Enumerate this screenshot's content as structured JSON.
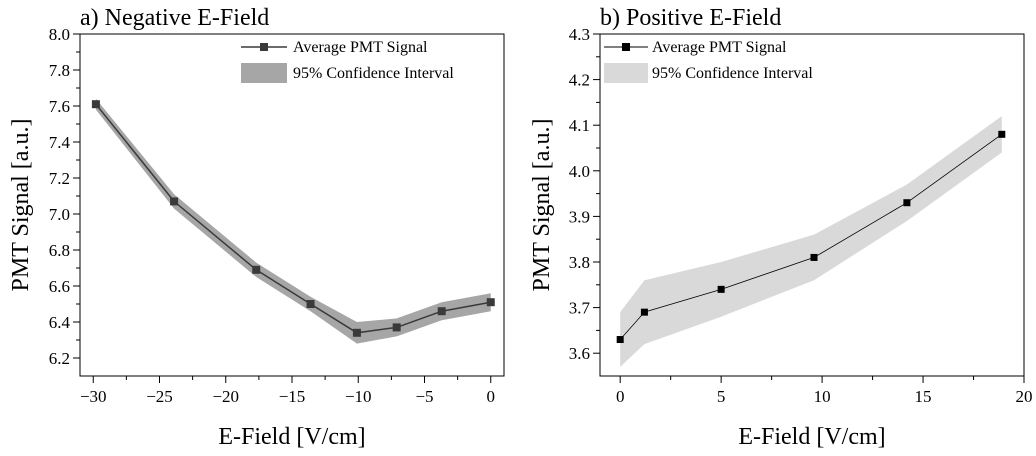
{
  "colors": {
    "left_line": "#3a3a3a",
    "left_band": "#a6a6a6",
    "right_line": "#000000",
    "right_band": "#d9d9d9",
    "axis": "#000000"
  },
  "chart_data": [
    {
      "type": "line",
      "title": "a) Negative E-Field",
      "xlabel": "E-Field [V/cm]",
      "ylabel": "PMT Signal [a.u.]",
      "xlim": [
        -31,
        1
      ],
      "ylim": [
        6.1,
        8.0
      ],
      "xticks": [
        -30,
        -25,
        -20,
        -15,
        -10,
        -5,
        0
      ],
      "xtick_labels": [
        "−30",
        "−25",
        "−20",
        "−15",
        "−10",
        "−5",
        "0"
      ],
      "yticks": [
        6.2,
        6.4,
        6.6,
        6.8,
        7.0,
        7.2,
        7.4,
        7.6,
        7.8,
        8.0
      ],
      "ytick_labels": [
        "6.2",
        "6.4",
        "6.6",
        "6.8",
        "7.0",
        "7.2",
        "7.4",
        "7.6",
        "7.8",
        "8.0"
      ],
      "legend_position": "top-right",
      "series": [
        {
          "name": "Average PMT Signal",
          "x": [
            -29.8,
            -23.9,
            -17.7,
            -13.6,
            -10.1,
            -7.1,
            -3.7,
            0
          ],
          "y": [
            7.61,
            7.07,
            6.69,
            6.5,
            6.34,
            6.37,
            6.46,
            6.51
          ]
        }
      ],
      "band": {
        "name": "95% Confidence Interval",
        "x": [
          -29.8,
          -23.9,
          -17.7,
          -13.6,
          -10.1,
          -7.1,
          -3.7,
          0
        ],
        "lower": [
          7.58,
          7.03,
          6.65,
          6.46,
          6.28,
          6.32,
          6.41,
          6.46
        ],
        "upper": [
          7.64,
          7.11,
          6.73,
          6.54,
          6.4,
          6.42,
          6.51,
          6.56
        ]
      }
    },
    {
      "type": "line",
      "title": "b) Positive E-Field",
      "xlabel": "E-Field [V/cm]",
      "ylabel": "PMT Signal [a.u.]",
      "xlim": [
        -1,
        20
      ],
      "ylim": [
        3.55,
        4.3
      ],
      "xticks": [
        0,
        5,
        10,
        15,
        20
      ],
      "xtick_labels": [
        "0",
        "5",
        "10",
        "15",
        "20"
      ],
      "yticks": [
        3.6,
        3.7,
        3.8,
        3.9,
        4.0,
        4.1,
        4.2,
        4.3
      ],
      "ytick_labels": [
        "3.6",
        "3.7",
        "3.8",
        "3.9",
        "4.0",
        "4.1",
        "4.2",
        "4.3"
      ],
      "legend_position": "top-left",
      "series": [
        {
          "name": "Average PMT Signal",
          "x": [
            0,
            1.2,
            5,
            9.6,
            14.2,
            18.9
          ],
          "y": [
            3.63,
            3.69,
            3.74,
            3.81,
            3.93,
            4.08
          ]
        }
      ],
      "band": {
        "name": "95% Confidence Interval",
        "x": [
          0,
          1.2,
          5,
          9.6,
          14.2,
          18.9
        ],
        "lower": [
          3.57,
          3.62,
          3.68,
          3.76,
          3.89,
          4.04
        ],
        "upper": [
          3.69,
          3.76,
          3.8,
          3.86,
          3.97,
          4.12
        ]
      }
    }
  ]
}
